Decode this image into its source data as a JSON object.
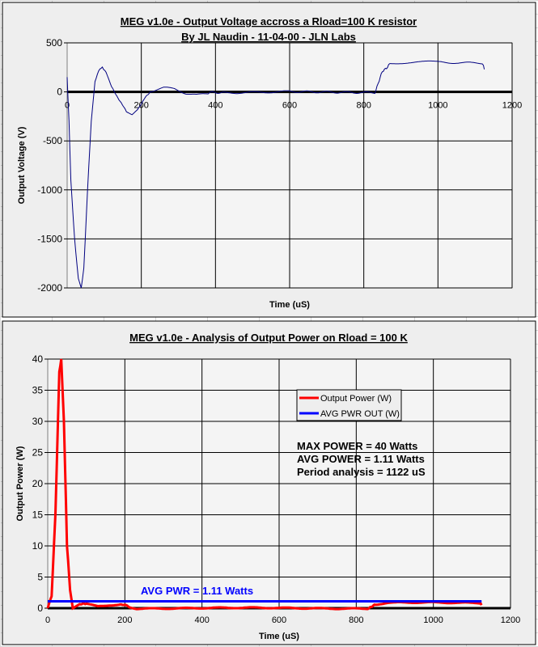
{
  "chart_data": [
    {
      "type": "line",
      "title": "MEG v1.0e - Output Voltage accross a Rload=100 K resistor",
      "subtitle": "By JL Naudin - 11-04-00 - JLN Labs",
      "xlabel": "Time (uS)",
      "ylabel": "Output Voltage (V)",
      "xlim": [
        0,
        1200
      ],
      "ylim": [
        -2000,
        500
      ],
      "xticks": [
        0,
        200,
        400,
        600,
        800,
        1000,
        1200
      ],
      "yticks": [
        500,
        0,
        -500,
        -1000,
        -1500,
        -2000
      ],
      "grid": true,
      "series": [
        {
          "name": "Output Voltage",
          "color": "#000080",
          "x": [
            0,
            5,
            10,
            20,
            30,
            38,
            45,
            55,
            65,
            75,
            85,
            95,
            105,
            120,
            140,
            160,
            175,
            190,
            210,
            230,
            260,
            290,
            320,
            350,
            380,
            420,
            600,
            830,
            850,
            870,
            1000,
            1120,
            1125
          ],
          "y": [
            150,
            -300,
            -900,
            -1500,
            -1900,
            -2000,
            -1800,
            -1000,
            -300,
            100,
            220,
            250,
            200,
            50,
            -80,
            -200,
            -230,
            -180,
            -60,
            20,
            50,
            40,
            -10,
            -30,
            -20,
            0,
            0,
            0,
            200,
            290,
            300,
            300,
            230
          ]
        }
      ]
    },
    {
      "type": "line",
      "title": "MEG v1.0e - Analysis of Output Power on Rload = 100 K",
      "xlabel": "Time (uS)",
      "ylabel": "Output Power (W)",
      "xlim": [
        0,
        1200
      ],
      "ylim": [
        0,
        40
      ],
      "xticks": [
        0,
        200,
        400,
        600,
        800,
        1000,
        1200
      ],
      "yticks": [
        40,
        35,
        30,
        25,
        20,
        15,
        10,
        5,
        0
      ],
      "grid": true,
      "legend": "top-right",
      "series": [
        {
          "name": "Output Power (W)",
          "color": "#ff0000",
          "x": [
            0,
            10,
            20,
            30,
            35,
            42,
            50,
            58,
            65,
            80,
            100,
            130,
            160,
            190,
            215,
            230,
            830,
            850,
            880,
            1000,
            1120,
            1125
          ],
          "y": [
            0,
            2,
            15,
            38,
            40,
            30,
            10,
            3,
            0,
            0.5,
            0.8,
            0.3,
            0.5,
            0.6,
            0.2,
            0,
            0,
            0.5,
            0.8,
            0.9,
            0.9,
            0.5
          ]
        },
        {
          "name": "AVG PWR OUT (W)",
          "color": "#0000ff",
          "x": [
            0,
            1125
          ],
          "y": [
            1.11,
            1.11
          ]
        }
      ],
      "annotations": [
        "MAX POWER = 40 Watts",
        "AVG POWER = 1.11 Watts",
        "Period analysis = 1122 uS",
        "AVG PWR = 1.11 Watts"
      ]
    }
  ]
}
